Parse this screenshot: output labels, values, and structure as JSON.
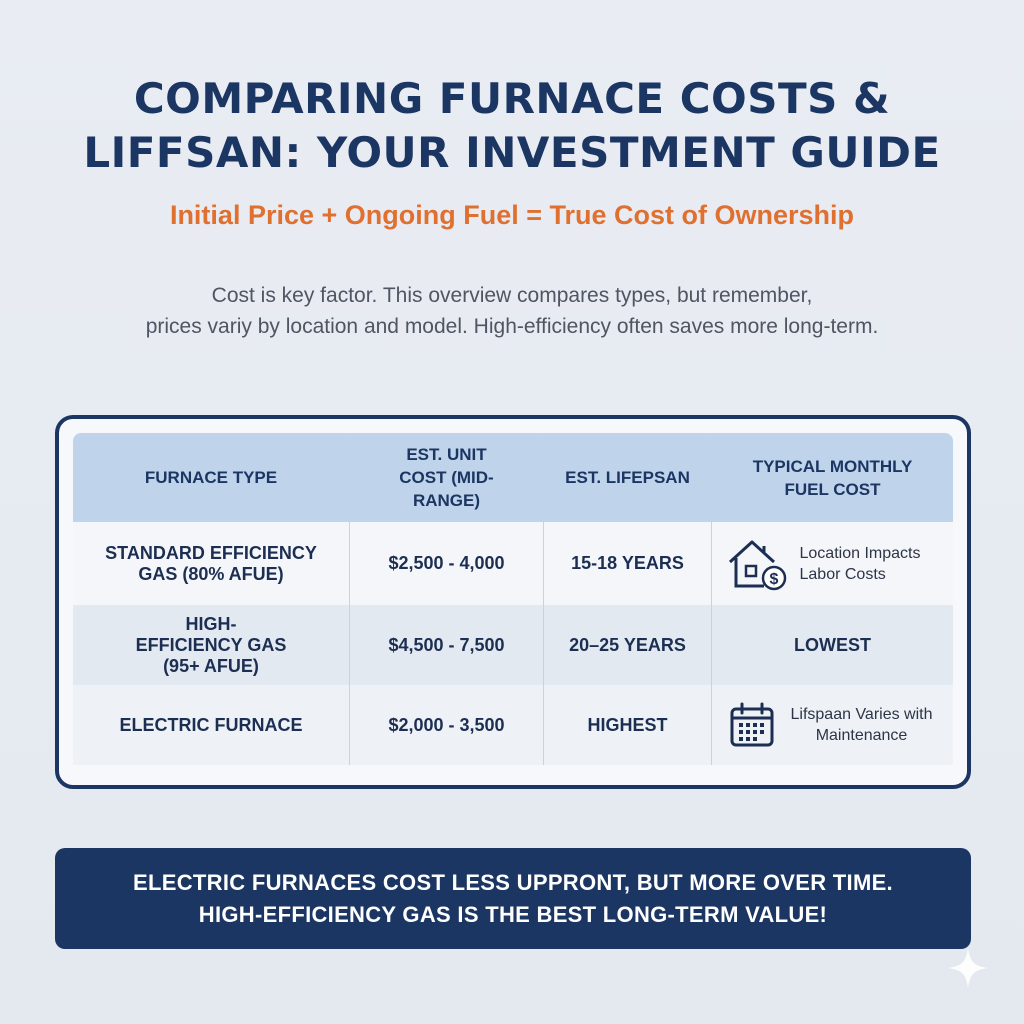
{
  "header": {
    "title_line1": "COMPARING FURNACE COSTS &",
    "title_line2": "LIFFSAN: YOUR INVESTMENT GUIDE",
    "subtitle": "Initial Price + Ongoing Fuel = True Cost of Ownership",
    "intro_line1": "Cost is key factor. This overview compares types, but remember,",
    "intro_line2": "prices variy by location and model. High-efficiency often saves more long-term."
  },
  "table": {
    "columns": [
      "FURNACE TYPE",
      "EST. UNIT COST (MID-RANGE)",
      "EST. LIFEPSAN",
      "TYPICAL MONTHLY FUEL COST"
    ],
    "rows": [
      {
        "type": "STANDARD EFFICIENCY GAS (80% AFUE)",
        "cost": "$2,500 - 4,000",
        "lifespan": "15-18 YEARS",
        "fuel_note": "Location Impacts Labor Costs",
        "fuel_icon": "house-dollar-icon"
      },
      {
        "type": "HIGH-EFFICIENCY GAS (95+ AFUE)",
        "cost": "$4,500 - 7,500",
        "lifespan": "20–25 YEARS",
        "fuel": "LOWEST"
      },
      {
        "type": "ELECTRIC FURNACE",
        "cost": "$2,000 - 3,500",
        "lifespan": "HIGHEST",
        "fuel_note": "Lifspaan Varies with Maintenance",
        "fuel_icon": "calendar-icon"
      }
    ]
  },
  "banner": {
    "line1": "ELECTRIC FURNACES COST LESS UPPRONT, BUT MORE OVER TIME.",
    "line2": "HIGH-EFFICIENCY GAS IS THE BEST LONG-TERM VALUE!"
  },
  "colors": {
    "navy": "#1c3663",
    "accent_orange": "#e07030",
    "header_blue": "#bfd4ea"
  }
}
